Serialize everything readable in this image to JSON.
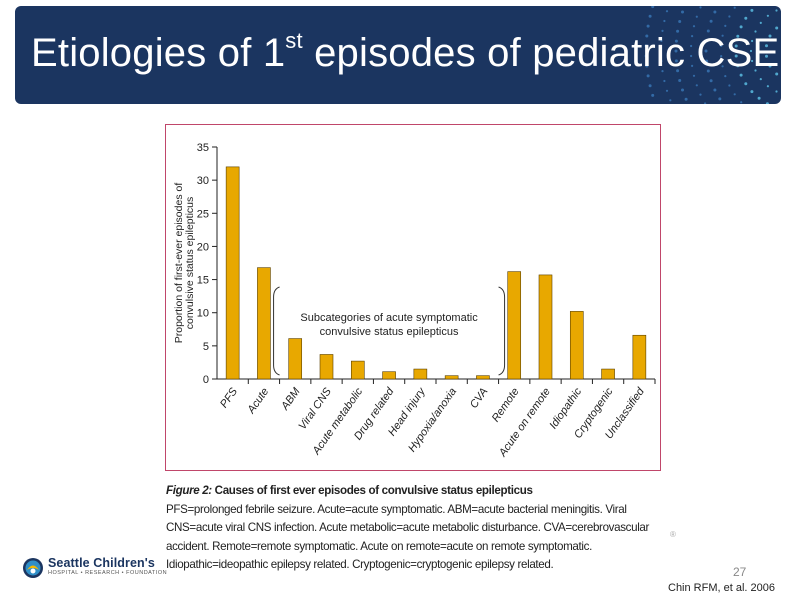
{
  "slide": {
    "title_main": "Etiologies of 1",
    "title_sup": "st",
    "title_rest": " episodes of pediatric CSE",
    "page_number": "27",
    "source": "Chin RFM, et al. 2006",
    "mark": "®"
  },
  "logo": {
    "name": "Seattle Children's",
    "sub": "HOSPITAL • RESEARCH • FOUNDATION"
  },
  "caption": {
    "figure_label": "Figure 2:",
    "figure_title": " Causes of first ever episodes of convulsive status epilepticus",
    "text": "PFS=prolonged febrile seizure. Acute=acute symptomatic. ABM=acute bacterial meningitis. Viral CNS=acute viral CNS infection. Acute metabolic=acute metabolic disturbance. CVA=cerebrovascular accident. Remote=remote symptomatic. Acute on remote=acute on remote symptomatic. Idiopathic=ideopathic epilepsy related. Cryptogenic=cryptogenic epilepsy related."
  },
  "chart_data": {
    "type": "bar",
    "title": "",
    "xlabel": "",
    "ylabel": "Proportion of first-ever episodes of convulsive status epilepticus",
    "ylabel_lines": [
      "Proportion of first-ever episodes of",
      "convulsive status epilepticus"
    ],
    "ylim": [
      0,
      35
    ],
    "yticks": [
      0,
      5,
      10,
      15,
      20,
      25,
      30,
      35
    ],
    "categories": [
      "PFS",
      "Acute",
      "ABM",
      "Viral CNS",
      "Acute metabolic",
      "Drug related",
      "Head injury",
      "Hypoxia/anoxia",
      "CVA",
      "Remote",
      "Acute on remote",
      "Idiopathic",
      "Cryptogenic",
      "Unclassified"
    ],
    "values": [
      32,
      16.8,
      6.1,
      3.7,
      2.7,
      1.1,
      1.5,
      0.5,
      0.5,
      16.2,
      15.7,
      10.2,
      1.5,
      6.6
    ],
    "bar_color": "#e8a800",
    "annotation_lines": [
      "Subcategories of acute symptomatic",
      "convulsive status epilepticus"
    ]
  }
}
